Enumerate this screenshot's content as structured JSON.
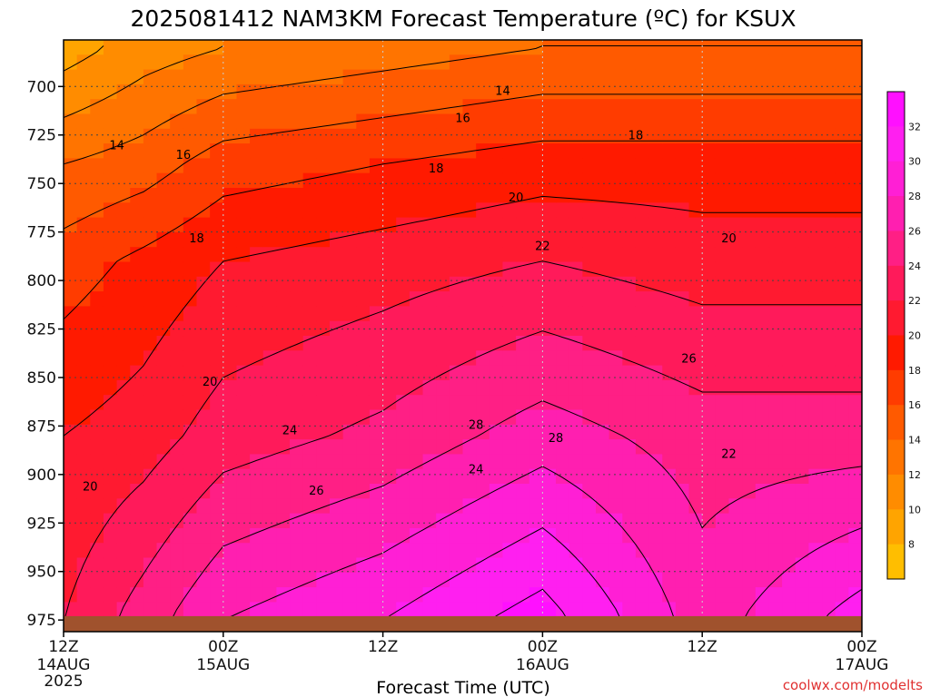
{
  "chart_data": {
    "type": "heatmap",
    "title": "2025081412 NAM3KM Forecast Temperature (ºC) for KSUX",
    "xlabel": "Forecast Time (UTC)",
    "credit": "coolwx.com/modelts",
    "x_ticks": [
      {
        "hours": 0,
        "hour_label": "12Z",
        "date_label": "14AUG",
        "year_label": "2025"
      },
      {
        "hours": 12,
        "hour_label": "00Z",
        "date_label": "15AUG"
      },
      {
        "hours": 24,
        "hour_label": "12Z"
      },
      {
        "hours": 36,
        "hour_label": "00Z",
        "date_label": "16AUG"
      },
      {
        "hours": 48,
        "hour_label": "12Z"
      },
      {
        "hours": 60,
        "hour_label": "00Z",
        "date_label": "17AUG"
      }
    ],
    "xlim_hours": [
      0,
      60
    ],
    "y_ticks": [
      700,
      725,
      750,
      775,
      800,
      825,
      850,
      875,
      900,
      925,
      950,
      975
    ],
    "ylim_hpa": [
      676,
      981
    ],
    "colorbar_levels": [
      8,
      10,
      12,
      14,
      16,
      18,
      20,
      22,
      24,
      26,
      28,
      30,
      32
    ],
    "colorbar_colors": [
      "#ffbe00",
      "#ffa400",
      "#ff8c00",
      "#ff7400",
      "#ff5a00",
      "#ff3c00",
      "#ff1a00",
      "#ff1a30",
      "#ff1a5a",
      "#ff1f85",
      "#ff1fb0",
      "#ff1fd5",
      "#ff1ff0",
      "#ff10ff"
    ],
    "ground_color": "#a0522d",
    "contour_labels": [
      {
        "text": "14",
        "t": 4.0,
        "p": 730
      },
      {
        "text": "16",
        "t": 9.0,
        "p": 735
      },
      {
        "text": "18",
        "t": 10.0,
        "p": 778
      },
      {
        "text": "20",
        "t": 11.0,
        "p": 852
      },
      {
        "text": "20",
        "t": 2.0,
        "p": 906
      },
      {
        "text": "24",
        "t": 17.0,
        "p": 877
      },
      {
        "text": "26",
        "t": 19.0,
        "p": 908
      },
      {
        "text": "18",
        "t": 28.0,
        "p": 742
      },
      {
        "text": "16",
        "t": 30.0,
        "p": 716
      },
      {
        "text": "14",
        "t": 33.0,
        "p": 702
      },
      {
        "text": "20",
        "t": 34.0,
        "p": 757
      },
      {
        "text": "22",
        "t": 36.0,
        "p": 782
      },
      {
        "text": "28",
        "t": 31.0,
        "p": 874
      },
      {
        "text": "24",
        "t": 31.0,
        "p": 897
      },
      {
        "text": "28",
        "t": 37.0,
        "p": 881
      },
      {
        "text": "18",
        "t": 43.0,
        "p": 725
      },
      {
        "text": "20",
        "t": 50.0,
        "p": 778
      },
      {
        "text": "26",
        "t": 47.0,
        "p": 840
      },
      {
        "text": "22",
        "t": 50.0,
        "p": 889
      }
    ],
    "temperature_profile": {
      "layout_note": "",
      "keyframes": [
        {
          "t": 0,
          "p": [
            9,
            14,
            17,
            20,
            22
          ]
        },
        {
          "t": 6,
          "p": [
            11,
            15,
            18.5,
            21,
            25
          ]
        },
        {
          "t": 12,
          "p": [
            12,
            17,
            20,
            23,
            28
          ]
        },
        {
          "t": 24,
          "p": [
            13,
            18,
            21,
            24.5,
            30
          ]
        },
        {
          "t": 36,
          "p": [
            14,
            19,
            22,
            27,
            33
          ]
        },
        {
          "t": 48,
          "p": [
            14,
            19,
            21,
            25,
            27
          ]
        },
        {
          "t": 60,
          "p": [
            14,
            19,
            21,
            25,
            31
          ]
        }
      ],
      "pressure_nodes": [
        680,
        740,
        790,
        880,
        975
      ]
    }
  }
}
